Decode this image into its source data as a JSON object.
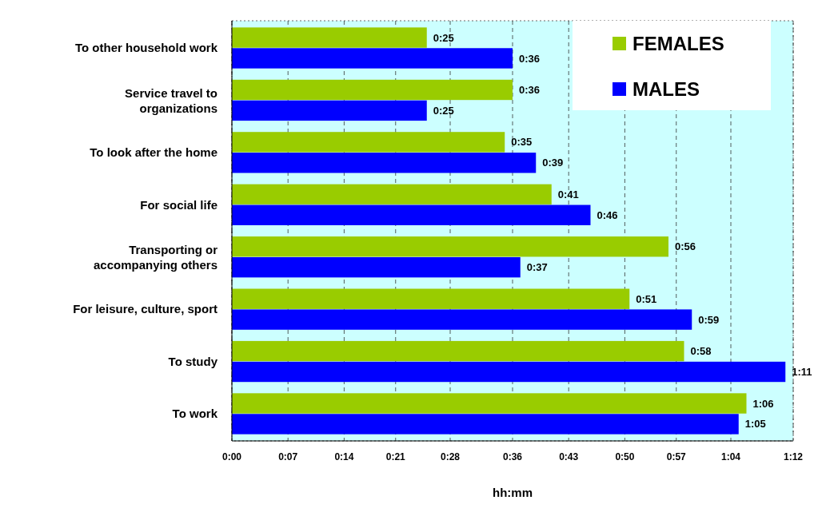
{
  "chart_data": {
    "type": "bar",
    "orientation": "horizontal",
    "xlabel": "hh:mm",
    "categories": [
      "To other household work",
      "Service travel to organizations",
      "To look after the home",
      "For social life",
      "Transporting or accompanying others",
      "For leisure, culture, sport",
      "To study",
      "To work"
    ],
    "series": [
      {
        "name": "FEMALES",
        "color": "#99cc00",
        "values": [
          25,
          36,
          35,
          41,
          56,
          51,
          58,
          66
        ],
        "value_labels": [
          "0:25",
          "0:36",
          "0:35",
          "0:41",
          "0:56",
          "0:51",
          "0:58",
          "1:06"
        ]
      },
      {
        "name": "MALES",
        "color": "#0000ff",
        "values": [
          36,
          25,
          39,
          46,
          37,
          59,
          71,
          65
        ],
        "value_labels": [
          "0:36",
          "0:25",
          "0:39",
          "0:46",
          "0:37",
          "0:59",
          "1:11",
          "1:05"
        ]
      }
    ],
    "xlim": [
      0,
      72
    ],
    "xticks": [
      {
        "value": 0,
        "label": "0:00"
      },
      {
        "value": 7.2,
        "label": "0:07"
      },
      {
        "value": 14.4,
        "label": "0:14"
      },
      {
        "value": 21,
        "label": "0:21"
      },
      {
        "value": 28,
        "label": "0:28"
      },
      {
        "value": 36,
        "label": "0:36"
      },
      {
        "value": 43.2,
        "label": "0:43"
      },
      {
        "value": 50.4,
        "label": "0:50"
      },
      {
        "value": 57,
        "label": "0:57"
      },
      {
        "value": 64,
        "label": "1:04"
      },
      {
        "value": 72,
        "label": "1:12"
      }
    ],
    "grid": "x",
    "legend": "top right"
  }
}
